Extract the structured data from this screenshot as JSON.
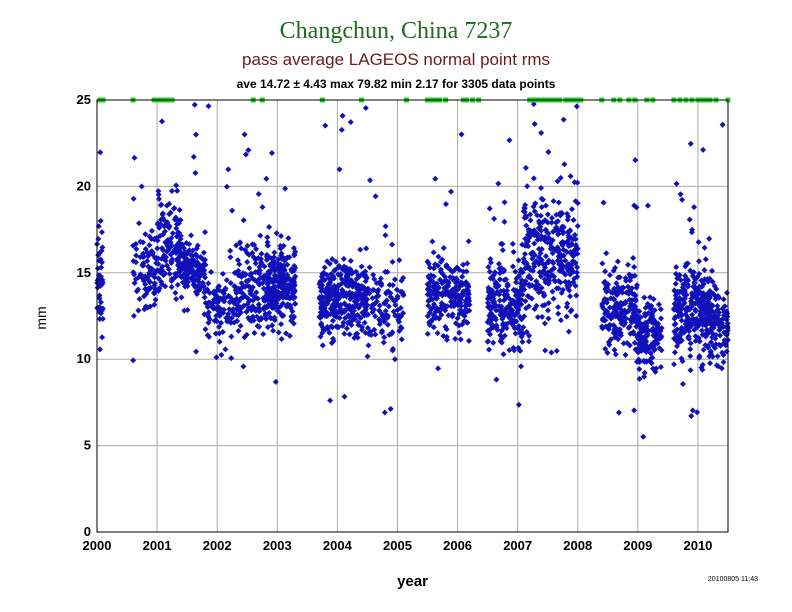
{
  "chart_data": {
    "type": "scatter",
    "title": "Changchun, China 7237",
    "subtitle": "pass average LAGEOS normal point rms",
    "stats_line": "ave 14.72 ± 4.43 max 79.82 min 2.17 for 3305 data points",
    "xlabel": "year",
    "ylabel": "mm",
    "xlim": [
      2000,
      2010.5
    ],
    "ylim": [
      0,
      25
    ],
    "x_ticks": [
      "2000",
      "2001",
      "2002",
      "2003",
      "2004",
      "2005",
      "2006",
      "2007",
      "2008",
      "2009",
      "2010"
    ],
    "y_ticks": [
      "0",
      "5",
      "10",
      "15",
      "20",
      "25"
    ],
    "grid": true,
    "footer_timestamp": "20100805 11:43",
    "colors": {
      "points": "#1111bb",
      "clipped": "#22cc22",
      "title": "#1e6b1e",
      "subtitle": "#6b1a1a"
    },
    "clusters": [
      {
        "x": [
          2000.0,
          2000.1
        ],
        "center": 14.5,
        "spread": 2.5,
        "count": 45
      },
      {
        "x": [
          2000.6,
          2001.0
        ],
        "center": 15.0,
        "spread": 2.0,
        "count": 90
      },
      {
        "x": [
          2001.0,
          2001.4
        ],
        "center": 16.5,
        "spread": 2.5,
        "count": 130
      },
      {
        "x": [
          2001.4,
          2001.8
        ],
        "center": 15.2,
        "spread": 1.3,
        "count": 150
      },
      {
        "x": [
          2001.8,
          2002.3
        ],
        "center": 13.2,
        "spread": 1.6,
        "count": 110
      },
      {
        "x": [
          2002.3,
          2002.8
        ],
        "center": 13.8,
        "spread": 2.3,
        "count": 150
      },
      {
        "x": [
          2002.8,
          2003.3
        ],
        "center": 14.3,
        "spread": 2.0,
        "count": 260
      },
      {
        "x": [
          2003.7,
          2004.5
        ],
        "center": 13.6,
        "spread": 1.8,
        "count": 330
      },
      {
        "x": [
          2004.5,
          2005.1
        ],
        "center": 13.0,
        "spread": 2.2,
        "count": 110
      },
      {
        "x": [
          2005.5,
          2006.2
        ],
        "center": 13.7,
        "spread": 1.8,
        "count": 230
      },
      {
        "x": [
          2006.5,
          2007.1
        ],
        "center": 13.3,
        "spread": 2.2,
        "count": 230
      },
      {
        "x": [
          2007.1,
          2008.0
        ],
        "center": 16.0,
        "spread": 3.0,
        "count": 330
      },
      {
        "x": [
          2008.4,
          2009.0
        ],
        "center": 13.0,
        "spread": 2.0,
        "count": 200
      },
      {
        "x": [
          2009.0,
          2009.4
        ],
        "center": 11.5,
        "spread": 1.7,
        "count": 150
      },
      {
        "x": [
          2009.6,
          2010.2
        ],
        "center": 12.8,
        "spread": 2.4,
        "count": 280
      },
      {
        "x": [
          2010.2,
          2010.5
        ],
        "center": 12.0,
        "spread": 1.8,
        "count": 110
      }
    ],
    "clipped_markers_at_25": [
      2000.05,
      2000.1,
      2000.6,
      2000.95,
      2001.0,
      2001.05,
      2001.1,
      2001.15,
      2001.2,
      2001.25,
      2002.6,
      2002.75,
      2003.75,
      2004.4,
      2005.15,
      2005.5,
      2005.55,
      2005.6,
      2005.65,
      2005.7,
      2005.8,
      2006.1,
      2006.15,
      2006.25,
      2006.35,
      2007.2,
      2007.25,
      2007.3,
      2007.35,
      2007.4,
      2007.45,
      2007.5,
      2007.55,
      2007.6,
      2007.65,
      2007.7,
      2007.8,
      2007.85,
      2007.9,
      2007.95,
      2008.0,
      2008.05,
      2008.4,
      2008.6,
      2008.7,
      2008.85,
      2008.95,
      2009.15,
      2009.25,
      2009.6,
      2009.7,
      2009.8,
      2009.9,
      2010.0,
      2010.05,
      2010.1,
      2010.15,
      2010.2,
      2010.3,
      2010.5
    ]
  }
}
